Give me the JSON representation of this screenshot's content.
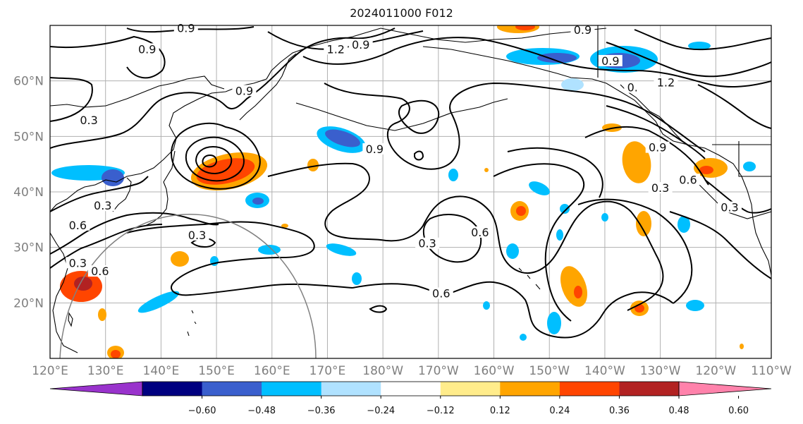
{
  "title": "2024011000 F012",
  "map": {
    "extent": {
      "lon": [
        120,
        250
      ],
      "lat": [
        10,
        70
      ]
    },
    "lat_ticks": [
      {
        "value": 60,
        "label": "60°N"
      },
      {
        "value": 50,
        "label": "50°N"
      },
      {
        "value": 40,
        "label": "40°N"
      },
      {
        "value": 30,
        "label": "30°N"
      },
      {
        "value": 20,
        "label": "20°N"
      }
    ],
    "lon_ticks": [
      {
        "value": 120,
        "label": "120°E"
      },
      {
        "value": 130,
        "label": "130°E"
      },
      {
        "value": 140,
        "label": "140°E"
      },
      {
        "value": 150,
        "label": "150°E"
      },
      {
        "value": 160,
        "label": "160°E"
      },
      {
        "value": 170,
        "label": "170°E"
      },
      {
        "value": 180,
        "label": "180°W"
      },
      {
        "value": 190,
        "label": "170°W"
      },
      {
        "value": 200,
        "label": "160°W"
      },
      {
        "value": 210,
        "label": "150°W"
      },
      {
        "value": 220,
        "label": "140°W"
      },
      {
        "value": 230,
        "label": "130°W"
      },
      {
        "value": 240,
        "label": "120°W"
      },
      {
        "value": 250,
        "label": "110°W"
      }
    ],
    "grid": true,
    "contour_labels": [
      {
        "text": "0.9",
        "lon": 144.5,
        "lat": 69.3
      },
      {
        "text": "0.9",
        "lon": 137.5,
        "lat": 65.5
      },
      {
        "text": "1.2",
        "lon": 171.5,
        "lat": 65.5
      },
      {
        "text": "0.9",
        "lon": 176.0,
        "lat": 66.3
      },
      {
        "text": "0.9",
        "lon": 155.0,
        "lat": 58.0
      },
      {
        "text": "0.9",
        "lon": 216.0,
        "lat": 69.0
      },
      {
        "text": "0.9",
        "lon": 221.0,
        "lat": 63.4
      },
      {
        "text": "1.2",
        "lon": 231.0,
        "lat": 59.5
      },
      {
        "text": "0.",
        "lon": 225.0,
        "lat": 58.6
      },
      {
        "text": "0.3",
        "lon": 127.0,
        "lat": 52.7
      },
      {
        "text": "0.9",
        "lon": 178.5,
        "lat": 47.5
      },
      {
        "text": "0.9",
        "lon": 229.5,
        "lat": 47.8
      },
      {
        "text": "0.3",
        "lon": 230.0,
        "lat": 40.5
      },
      {
        "text": "0.6",
        "lon": 235.0,
        "lat": 42.0
      },
      {
        "text": "0.3",
        "lon": 242.5,
        "lat": 37.0
      },
      {
        "text": "0.3",
        "lon": 129.5,
        "lat": 37.3
      },
      {
        "text": "0.3",
        "lon": 146.5,
        "lat": 32.0
      },
      {
        "text": "0.6",
        "lon": 125.0,
        "lat": 33.8
      },
      {
        "text": "0.3",
        "lon": 125.0,
        "lat": 27.0
      },
      {
        "text": "0.6",
        "lon": 129.0,
        "lat": 25.5
      },
      {
        "text": "0.3",
        "lon": 188.0,
        "lat": 30.5
      },
      {
        "text": "0.6",
        "lon": 197.5,
        "lat": 32.5
      },
      {
        "text": "0.6",
        "lon": 190.5,
        "lat": 21.5
      }
    ]
  },
  "colorbar": {
    "colors": [
      "#9933cc",
      "#000080",
      "#3a5fcd",
      "#00bfff",
      "#b0e2ff",
      "#ffffff",
      "#ffec8b",
      "#ffa500",
      "#ff4500",
      "#b22222",
      "#ff82ab"
    ],
    "tick_labels": [
      "−0.60",
      "−0.48",
      "−0.36",
      "−0.24",
      "−0.12",
      "0.12",
      "0.24",
      "0.36",
      "0.48",
      "0.60"
    ]
  }
}
